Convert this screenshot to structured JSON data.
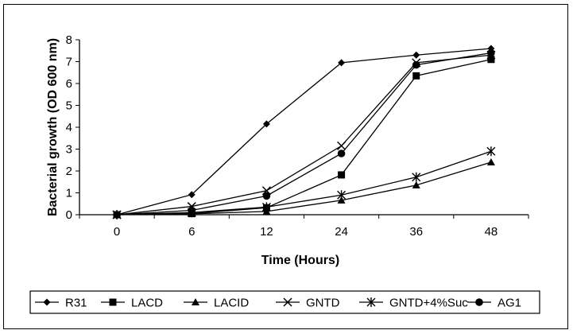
{
  "chart_data": {
    "type": "line",
    "title": "",
    "xlabel": "Time (Hours)",
    "ylabel": "Bacterial growth (OD 600 nm)",
    "categories": [
      "0",
      "6",
      "12",
      "24",
      "36",
      "48"
    ],
    "ylim": [
      0,
      8
    ],
    "yticks": [
      0,
      1,
      2,
      3,
      4,
      5,
      6,
      7,
      8
    ],
    "grid": false,
    "legend_position": "bottom",
    "series": [
      {
        "name": "R31",
        "marker": "diamond",
        "values": [
          0.0,
          0.92,
          4.15,
          6.95,
          7.3,
          7.6
        ]
      },
      {
        "name": "LACD",
        "marker": "square",
        "values": [
          0.0,
          0.05,
          0.32,
          1.82,
          6.35,
          7.1
        ]
      },
      {
        "name": "LACID",
        "marker": "triangle",
        "values": [
          0.0,
          0.04,
          0.15,
          0.66,
          1.35,
          2.4
        ]
      },
      {
        "name": "GNTD",
        "marker": "x",
        "values": [
          0.0,
          0.38,
          1.1,
          3.15,
          6.95,
          7.3
        ]
      },
      {
        "name": "GNTD+4%Suc",
        "marker": "asterisk",
        "values": [
          0.0,
          0.1,
          0.35,
          0.9,
          1.72,
          2.9
        ]
      },
      {
        "name": "AG1",
        "marker": "circle",
        "values": [
          0.0,
          0.2,
          0.86,
          2.8,
          6.85,
          7.4
        ]
      }
    ]
  }
}
